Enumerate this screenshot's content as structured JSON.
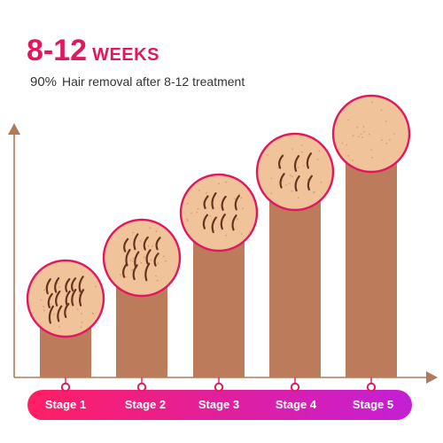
{
  "headline": {
    "range": "8-12",
    "unit": "WEEKS"
  },
  "subtitle": {
    "percent": "90%",
    "text": "Hair removal after 8-12 treatment"
  },
  "colors": {
    "accent": "#e2185e",
    "bar": "#bc7b5b",
    "skin": "#f0c39a",
    "axis": "#b07a5a",
    "band_start": "#ff1f63",
    "band_end": "#c41fd6"
  },
  "stages": [
    {
      "label": "Stage 1",
      "level": 1,
      "hairs": 13
    },
    {
      "label": "Stage 2",
      "level": 2,
      "hairs": 11
    },
    {
      "label": "Stage 3",
      "level": 3,
      "hairs": 8
    },
    {
      "label": "Stage 4",
      "level": 4,
      "hairs": 6
    },
    {
      "label": "Stage 5",
      "level": 5,
      "hairs": 0
    }
  ]
}
